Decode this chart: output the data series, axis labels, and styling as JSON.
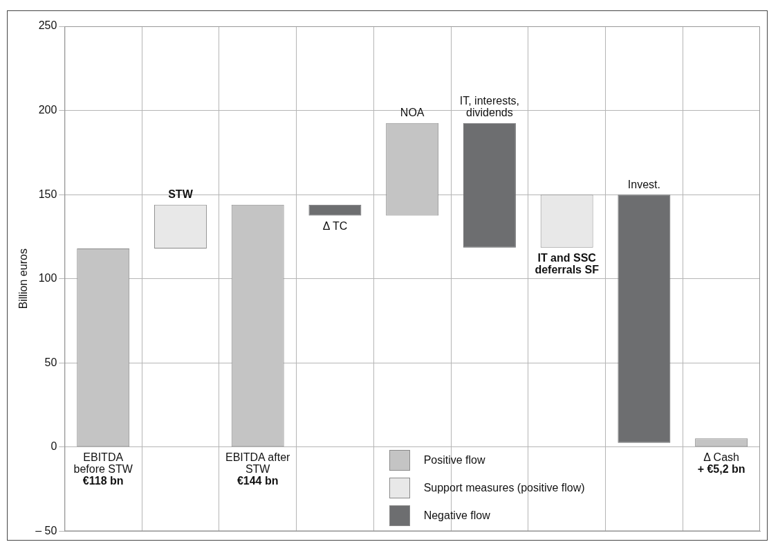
{
  "chart_data": {
    "type": "bar",
    "ylabel": "Billion euros",
    "categories": [
      "EBITDA before STW",
      "STW",
      "EBITDA after STW",
      "Δ TC",
      "NOA",
      "IT, interests, dividends",
      "IT and SSC deferrals SF",
      "Invest.",
      "Δ Cash"
    ],
    "series": [
      {
        "name": "Positive flow",
        "color": "#c4c4c4",
        "base": [
          0,
          null,
          0,
          null,
          137.5,
          null,
          null,
          null,
          0
        ],
        "values": [
          118,
          null,
          144,
          null,
          55,
          null,
          null,
          null,
          5.2
        ],
        "value_labels": [
          "€118 bn",
          null,
          "€144 bn",
          null,
          null,
          null,
          null,
          null,
          "+ €5,2 bn"
        ]
      },
      {
        "name": "Support measures (positive flow)",
        "color": "#e8e8e8",
        "base": [
          null,
          118,
          null,
          null,
          null,
          null,
          118.5,
          null,
          null
        ],
        "values": [
          null,
          26,
          null,
          null,
          null,
          null,
          31.5,
          null,
          null
        ]
      },
      {
        "name": "Negative flow",
        "color": "#6d6e70",
        "base": [
          null,
          null,
          null,
          144,
          null,
          192.5,
          null,
          150,
          null
        ],
        "values": [
          null,
          null,
          null,
          -6.5,
          null,
          -74,
          null,
          -147.5,
          null
        ]
      }
    ],
    "ylim": [
      -50,
      250
    ],
    "yticks": [
      {
        "value": -50,
        "label": "– 50"
      },
      0,
      50,
      100,
      150,
      200,
      250
    ],
    "grid": true,
    "legend": "bottom",
    "tick_labels": "y"
  }
}
